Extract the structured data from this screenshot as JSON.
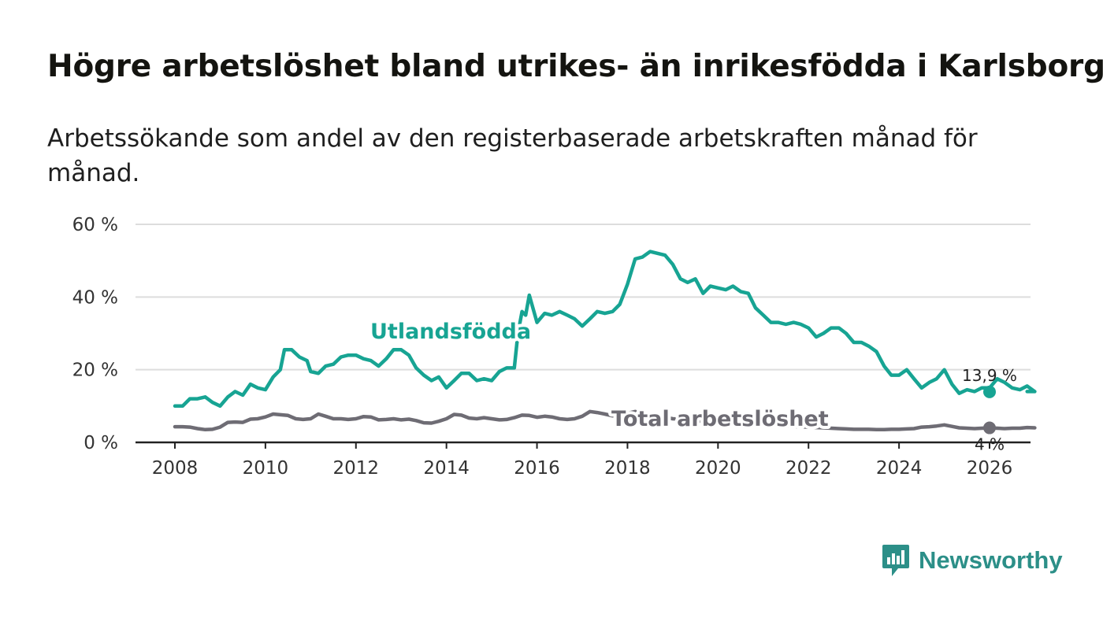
{
  "title": "Högre arbetslöshet bland utrikes- än inrikesfödda i Karlsborg",
  "subtitle": "Arbetssökande som andel av den registerbaserade arbetskraften månad för månad.",
  "brand": "Newsworthy",
  "colors": {
    "foreign": "#17a493",
    "total": "#6e6c74",
    "grid": "#dddddd",
    "axis": "#222222"
  },
  "chart_data": {
    "type": "line",
    "title": "Högre arbetslöshet bland utrikes- än inrikesfödda i Karlsborg",
    "xlabel": "",
    "ylabel": "",
    "xlim": [
      2007.1,
      2027.1
    ],
    "ylim": [
      0,
      60
    ],
    "x_ticks": [
      2008,
      2010,
      2012,
      2014,
      2016,
      2018,
      2020,
      2022,
      2024,
      2026
    ],
    "x_tick_labels": [
      "2008",
      "2010",
      "2012",
      "2014",
      "2016",
      "2018",
      "2020",
      "2022",
      "2024",
      "2026"
    ],
    "y_ticks": [
      0,
      20,
      40,
      60
    ],
    "y_tick_labels": [
      "0 %",
      "20 %",
      "40 %",
      "60 %"
    ],
    "grid": true,
    "series": [
      {
        "name": "Utlandsfödda",
        "end_label": "13,9 %",
        "points": [
          [
            2008.0,
            10
          ],
          [
            2008.17,
            10
          ],
          [
            2008.33,
            12
          ],
          [
            2008.5,
            12
          ],
          [
            2008.67,
            12.5
          ],
          [
            2008.83,
            11
          ],
          [
            2009.0,
            10
          ],
          [
            2009.17,
            12.5
          ],
          [
            2009.33,
            14
          ],
          [
            2009.5,
            13
          ],
          [
            2009.67,
            16
          ],
          [
            2009.83,
            15
          ],
          [
            2010.0,
            14.5
          ],
          [
            2010.17,
            18
          ],
          [
            2010.33,
            20
          ],
          [
            2010.42,
            25.5
          ],
          [
            2010.58,
            25.5
          ],
          [
            2010.75,
            23.5
          ],
          [
            2010.92,
            22.5
          ],
          [
            2011.0,
            19.5
          ],
          [
            2011.17,
            19
          ],
          [
            2011.33,
            21
          ],
          [
            2011.5,
            21.5
          ],
          [
            2011.67,
            23.5
          ],
          [
            2011.83,
            24
          ],
          [
            2012.0,
            24
          ],
          [
            2012.17,
            23
          ],
          [
            2012.33,
            22.5
          ],
          [
            2012.5,
            21
          ],
          [
            2012.67,
            23
          ],
          [
            2012.83,
            25.5
          ],
          [
            2013.0,
            25.5
          ],
          [
            2013.17,
            24
          ],
          [
            2013.33,
            20.5
          ],
          [
            2013.5,
            18.5
          ],
          [
            2013.67,
            17
          ],
          [
            2013.83,
            18
          ],
          [
            2014.0,
            15
          ],
          [
            2014.17,
            17
          ],
          [
            2014.33,
            19
          ],
          [
            2014.5,
            19
          ],
          [
            2014.67,
            17
          ],
          [
            2014.83,
            17.5
          ],
          [
            2015.0,
            17
          ],
          [
            2015.17,
            19.5
          ],
          [
            2015.33,
            20.5
          ],
          [
            2015.5,
            20.5
          ],
          [
            2015.58,
            30
          ],
          [
            2015.67,
            36
          ],
          [
            2015.75,
            35
          ],
          [
            2015.83,
            40.5
          ],
          [
            2016.0,
            33
          ],
          [
            2016.17,
            35.5
          ],
          [
            2016.33,
            35
          ],
          [
            2016.5,
            36
          ],
          [
            2016.67,
            35
          ],
          [
            2016.83,
            34
          ],
          [
            2017.0,
            32
          ],
          [
            2017.17,
            34
          ],
          [
            2017.33,
            36
          ],
          [
            2017.5,
            35.5
          ],
          [
            2017.67,
            36
          ],
          [
            2017.83,
            38
          ],
          [
            2018.0,
            43.5
          ],
          [
            2018.17,
            50.5
          ],
          [
            2018.33,
            51
          ],
          [
            2018.5,
            52.5
          ],
          [
            2018.67,
            52
          ],
          [
            2018.83,
            51.5
          ],
          [
            2019.0,
            49
          ],
          [
            2019.17,
            45
          ],
          [
            2019.33,
            44
          ],
          [
            2019.5,
            45
          ],
          [
            2019.67,
            41
          ],
          [
            2019.83,
            43
          ],
          [
            2020.0,
            42.5
          ],
          [
            2020.17,
            42
          ],
          [
            2020.33,
            43
          ],
          [
            2020.5,
            41.5
          ],
          [
            2020.67,
            41
          ],
          [
            2020.83,
            37
          ],
          [
            2021.0,
            35
          ],
          [
            2021.17,
            33
          ],
          [
            2021.33,
            33
          ],
          [
            2021.5,
            32.5
          ],
          [
            2021.67,
            33
          ],
          [
            2021.83,
            32.5
          ],
          [
            2022.0,
            31.5
          ],
          [
            2022.17,
            29
          ],
          [
            2022.33,
            30
          ],
          [
            2022.5,
            31.5
          ],
          [
            2022.67,
            31.5
          ],
          [
            2022.83,
            30
          ],
          [
            2023.0,
            27.5
          ],
          [
            2023.17,
            27.5
          ],
          [
            2023.33,
            26.5
          ],
          [
            2023.5,
            25
          ],
          [
            2023.67,
            21
          ],
          [
            2023.83,
            18.5
          ],
          [
            2024.0,
            18.5
          ],
          [
            2024.17,
            20
          ],
          [
            2024.33,
            17.5
          ],
          [
            2024.5,
            15
          ],
          [
            2024.67,
            16.5
          ],
          [
            2024.83,
            17.5
          ],
          [
            2025.0,
            20
          ],
          [
            2025.17,
            16
          ],
          [
            2025.33,
            13.5
          ],
          [
            2025.5,
            14.5
          ],
          [
            2025.67,
            14
          ],
          [
            2025.83,
            15
          ],
          [
            2026.0,
            15
          ],
          [
            2026.17,
            17.5
          ],
          [
            2026.33,
            16.5
          ],
          [
            2026.5,
            15
          ],
          [
            2026.67,
            14.5
          ],
          [
            2026.83,
            15.5
          ],
          [
            2027.0,
            14
          ],
          [
            2026.83,
            14
          ],
          [
            2026.9,
            13.9
          ]
        ]
      },
      {
        "name": "Total arbetslöshet",
        "end_label": "4 %",
        "points": [
          [
            2008.0,
            4.3
          ],
          [
            2008.17,
            4.3
          ],
          [
            2008.33,
            4.2
          ],
          [
            2008.5,
            3.8
          ],
          [
            2008.67,
            3.5
          ],
          [
            2008.83,
            3.6
          ],
          [
            2009.0,
            4.2
          ],
          [
            2009.17,
            5.5
          ],
          [
            2009.33,
            5.6
          ],
          [
            2009.5,
            5.5
          ],
          [
            2009.67,
            6.4
          ],
          [
            2009.83,
            6.5
          ],
          [
            2010.0,
            7.0
          ],
          [
            2010.17,
            7.8
          ],
          [
            2010.33,
            7.6
          ],
          [
            2010.5,
            7.4
          ],
          [
            2010.67,
            6.5
          ],
          [
            2010.83,
            6.3
          ],
          [
            2011.0,
            6.5
          ],
          [
            2011.17,
            7.8
          ],
          [
            2011.33,
            7.2
          ],
          [
            2011.5,
            6.5
          ],
          [
            2011.67,
            6.5
          ],
          [
            2011.83,
            6.3
          ],
          [
            2012.0,
            6.5
          ],
          [
            2012.17,
            7.1
          ],
          [
            2012.33,
            7.0
          ],
          [
            2012.5,
            6.2
          ],
          [
            2012.67,
            6.3
          ],
          [
            2012.83,
            6.5
          ],
          [
            2013.0,
            6.2
          ],
          [
            2013.17,
            6.4
          ],
          [
            2013.33,
            6.0
          ],
          [
            2013.5,
            5.4
          ],
          [
            2013.67,
            5.3
          ],
          [
            2013.83,
            5.8
          ],
          [
            2014.0,
            6.5
          ],
          [
            2014.17,
            7.7
          ],
          [
            2014.33,
            7.5
          ],
          [
            2014.5,
            6.7
          ],
          [
            2014.67,
            6.5
          ],
          [
            2014.83,
            6.8
          ],
          [
            2015.0,
            6.5
          ],
          [
            2015.17,
            6.2
          ],
          [
            2015.33,
            6.3
          ],
          [
            2015.5,
            6.8
          ],
          [
            2015.67,
            7.5
          ],
          [
            2015.83,
            7.4
          ],
          [
            2016.0,
            6.9
          ],
          [
            2016.17,
            7.2
          ],
          [
            2016.33,
            7.0
          ],
          [
            2016.5,
            6.5
          ],
          [
            2016.67,
            6.3
          ],
          [
            2016.83,
            6.5
          ],
          [
            2017.0,
            7.2
          ],
          [
            2017.17,
            8.5
          ],
          [
            2017.33,
            8.2
          ],
          [
            2017.5,
            7.8
          ],
          [
            2017.67,
            7.3
          ],
          [
            2017.83,
            7.5
          ],
          [
            2018.0,
            8.0
          ],
          [
            2018.17,
            8.5
          ],
          [
            2018.33,
            8.0
          ],
          [
            2018.5,
            7.4
          ],
          [
            2018.67,
            7.1
          ],
          [
            2018.83,
            6.9
          ],
          [
            2019.0,
            6.5
          ],
          [
            2019.17,
            6.4
          ],
          [
            2019.33,
            6.1
          ],
          [
            2019.5,
            5.8
          ],
          [
            2019.67,
            5.9
          ],
          [
            2019.83,
            6.0
          ],
          [
            2020.0,
            5.9
          ],
          [
            2020.17,
            5.7
          ],
          [
            2020.33,
            5.5
          ],
          [
            2020.5,
            5.5
          ],
          [
            2020.67,
            5.3
          ],
          [
            2020.83,
            5.1
          ],
          [
            2021.0,
            4.9
          ],
          [
            2021.17,
            4.8
          ],
          [
            2021.33,
            4.6
          ],
          [
            2021.5,
            4.5
          ],
          [
            2021.67,
            4.4
          ],
          [
            2021.83,
            4.3
          ],
          [
            2022.0,
            4.2
          ],
          [
            2022.17,
            4.1
          ],
          [
            2022.33,
            4.0
          ],
          [
            2022.5,
            3.9
          ],
          [
            2022.67,
            3.8
          ],
          [
            2022.83,
            3.7
          ],
          [
            2023.0,
            3.6
          ],
          [
            2023.17,
            3.6
          ],
          [
            2023.33,
            3.6
          ],
          [
            2023.5,
            3.5
          ],
          [
            2023.67,
            3.5
          ],
          [
            2023.83,
            3.6
          ],
          [
            2024.0,
            3.6
          ],
          [
            2024.17,
            3.7
          ],
          [
            2024.33,
            3.8
          ],
          [
            2024.5,
            4.2
          ],
          [
            2024.67,
            4.3
          ],
          [
            2024.83,
            4.5
          ],
          [
            2025.0,
            4.8
          ],
          [
            2025.17,
            4.4
          ],
          [
            2025.33,
            4.0
          ],
          [
            2025.5,
            3.9
          ],
          [
            2025.67,
            3.8
          ],
          [
            2025.83,
            3.9
          ],
          [
            2026.0,
            4.0
          ],
          [
            2026.17,
            3.9
          ],
          [
            2026.33,
            3.8
          ],
          [
            2026.5,
            3.9
          ],
          [
            2026.67,
            3.9
          ],
          [
            2026.83,
            4.1
          ],
          [
            2027.0,
            4.0
          ],
          [
            2026.9,
            4.0
          ]
        ]
      }
    ]
  }
}
